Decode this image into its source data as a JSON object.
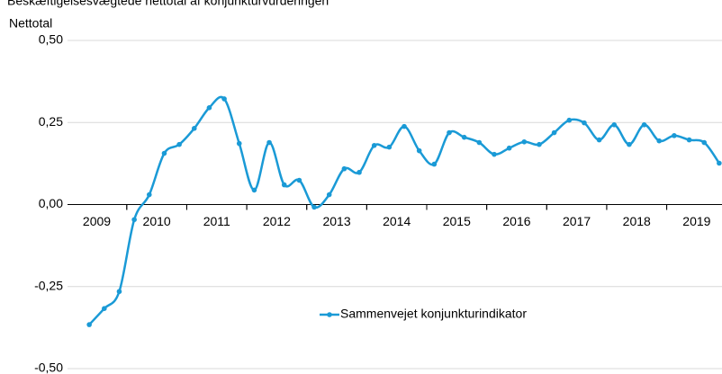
{
  "chart_data": {
    "type": "line",
    "title": "Beskæftigelsesvægtede nettotal af konjunkturvurderingen",
    "y_label": "Nettotal",
    "categories": [
      "2009",
      null,
      null,
      null,
      "2010",
      null,
      null,
      null,
      "2011",
      null,
      null,
      null,
      "2012",
      null,
      null,
      null,
      "2013",
      null,
      null,
      null,
      "2014",
      null,
      null,
      null,
      "2015",
      null,
      null,
      null,
      "2016",
      null,
      null,
      null,
      "2017",
      null,
      null,
      null,
      "2018",
      null,
      null,
      null,
      "2019",
      null,
      null
    ],
    "series": [
      {
        "name": "Sammenvejet konjunkturindikator",
        "color": "#1a9ad6",
        "values": [
          -0.366,
          -0.317,
          -0.265,
          -0.046,
          0.03,
          0.156,
          0.183,
          0.232,
          0.295,
          0.322,
          0.186,
          0.044,
          0.189,
          0.06,
          0.074,
          -0.008,
          0.03,
          0.109,
          0.098,
          0.18,
          0.175,
          0.238,
          0.164,
          0.123,
          0.219,
          0.205,
          0.189,
          0.153,
          0.172,
          0.191,
          0.183,
          0.219,
          0.257,
          0.249,
          0.197,
          0.243,
          0.183,
          0.243,
          0.194,
          0.21,
          0.197,
          0.189,
          0.126
        ]
      }
    ],
    "ylim": [
      -0.5,
      0.5
    ],
    "yticks": [
      {
        "value": 0.5,
        "label": "0,50"
      },
      {
        "value": 0.25,
        "label": "0,25"
      },
      {
        "value": 0,
        "label": "0,00"
      },
      {
        "value": -0.25,
        "label": "-0,25"
      },
      {
        "value": -0.5,
        "label": "-0,50"
      }
    ],
    "grid": true,
    "legend": "center"
  }
}
